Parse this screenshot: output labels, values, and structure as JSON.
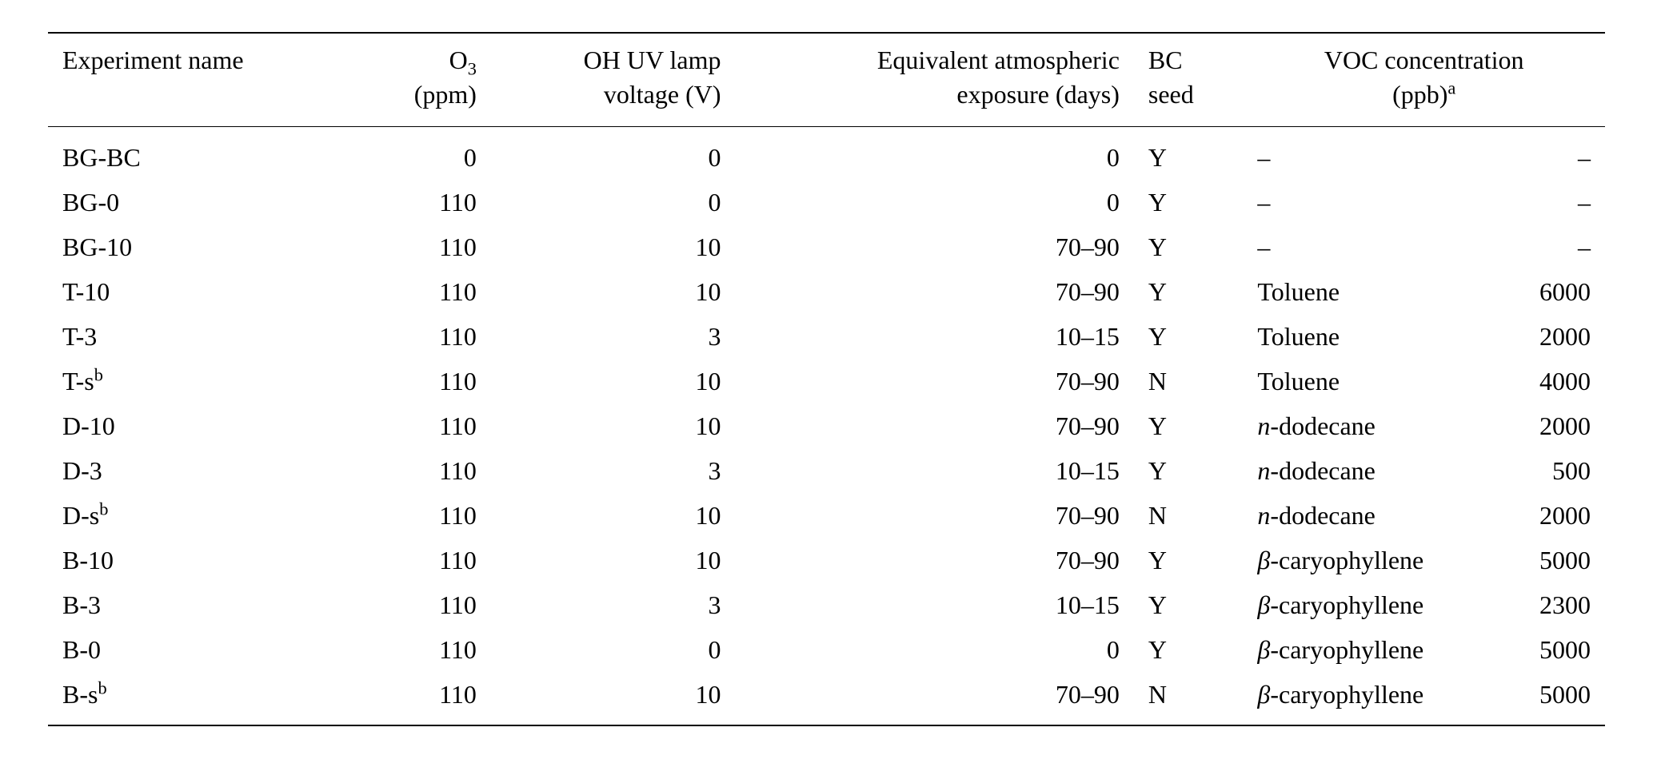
{
  "table": {
    "type": "table",
    "background_color": "#ffffff",
    "text_color": "#000000",
    "rule_color": "#000000",
    "font_family": "Times New Roman",
    "base_fontsize_pt": 24,
    "columns": [
      {
        "id": "exp",
        "label_line1": "Experiment name",
        "label_line2": "",
        "align": "left"
      },
      {
        "id": "o3",
        "label_line1": "O",
        "label_sub": "3",
        "label_line2": "(ppm)",
        "align": "right"
      },
      {
        "id": "ohuv",
        "label_line1": "OH UV lamp",
        "label_line2": "voltage (V)",
        "align": "right"
      },
      {
        "id": "equiv",
        "label_line1": "Equivalent atmospheric",
        "label_line2": "exposure (days)",
        "align": "right"
      },
      {
        "id": "bc",
        "label_line1": "BC",
        "label_line2": "seed",
        "align": "left"
      },
      {
        "id": "voc",
        "label_line1": "VOC concentration",
        "label_line2": "(ppb)",
        "label_sup": "a",
        "align": "center"
      }
    ],
    "rows": [
      {
        "exp": "BG-BC",
        "exp_sup": "",
        "o3": "0",
        "ohuv": "0",
        "equiv": "0",
        "bc": "Y",
        "voc_prefix": "",
        "voc_name": "–",
        "voc_value": "–"
      },
      {
        "exp": "BG-0",
        "exp_sup": "",
        "o3": "110",
        "ohuv": "0",
        "equiv": "0",
        "bc": "Y",
        "voc_prefix": "",
        "voc_name": "–",
        "voc_value": "–"
      },
      {
        "exp": "BG-10",
        "exp_sup": "",
        "o3": "110",
        "ohuv": "10",
        "equiv": "70–90",
        "bc": "Y",
        "voc_prefix": "",
        "voc_name": "–",
        "voc_value": "–"
      },
      {
        "exp": "T-10",
        "exp_sup": "",
        "o3": "110",
        "ohuv": "10",
        "equiv": "70–90",
        "bc": "Y",
        "voc_prefix": "",
        "voc_name": "Toluene",
        "voc_value": "6000"
      },
      {
        "exp": "T-3",
        "exp_sup": "",
        "o3": "110",
        "ohuv": "3",
        "equiv": "10–15",
        "bc": "Y",
        "voc_prefix": "",
        "voc_name": "Toluene",
        "voc_value": "2000"
      },
      {
        "exp": "T-s",
        "exp_sup": "b",
        "o3": "110",
        "ohuv": "10",
        "equiv": "70–90",
        "bc": "N",
        "voc_prefix": "",
        "voc_name": "Toluene",
        "voc_value": "4000"
      },
      {
        "exp": "D-10",
        "exp_sup": "",
        "o3": "110",
        "ohuv": "10",
        "equiv": "70–90",
        "bc": "Y",
        "voc_prefix": "n",
        "voc_name": "-dodecane",
        "voc_value": "2000"
      },
      {
        "exp": "D-3",
        "exp_sup": "",
        "o3": "110",
        "ohuv": "3",
        "equiv": "10–15",
        "bc": "Y",
        "voc_prefix": "n",
        "voc_name": "-dodecane",
        "voc_value": "500"
      },
      {
        "exp": "D-s",
        "exp_sup": "b",
        "o3": "110",
        "ohuv": "10",
        "equiv": "70–90",
        "bc": "N",
        "voc_prefix": "n",
        "voc_name": "-dodecane",
        "voc_value": "2000"
      },
      {
        "exp": "B-10",
        "exp_sup": "",
        "o3": "110",
        "ohuv": "10",
        "equiv": "70–90",
        "bc": "Y",
        "voc_prefix": "β",
        "voc_name": "-caryophyllene",
        "voc_value": "5000"
      },
      {
        "exp": "B-3",
        "exp_sup": "",
        "o3": "110",
        "ohuv": "3",
        "equiv": "10–15",
        "bc": "Y",
        "voc_prefix": "β",
        "voc_name": "-caryophyllene",
        "voc_value": "2300"
      },
      {
        "exp": "B-0",
        "exp_sup": "",
        "o3": "110",
        "ohuv": "0",
        "equiv": "0",
        "bc": "Y",
        "voc_prefix": "β",
        "voc_name": "-caryophyllene",
        "voc_value": "5000"
      },
      {
        "exp": "B-s",
        "exp_sup": "b",
        "o3": "110",
        "ohuv": "10",
        "equiv": "70–90",
        "bc": "N",
        "voc_prefix": "β",
        "voc_name": "-caryophyllene",
        "voc_value": "5000"
      }
    ]
  }
}
